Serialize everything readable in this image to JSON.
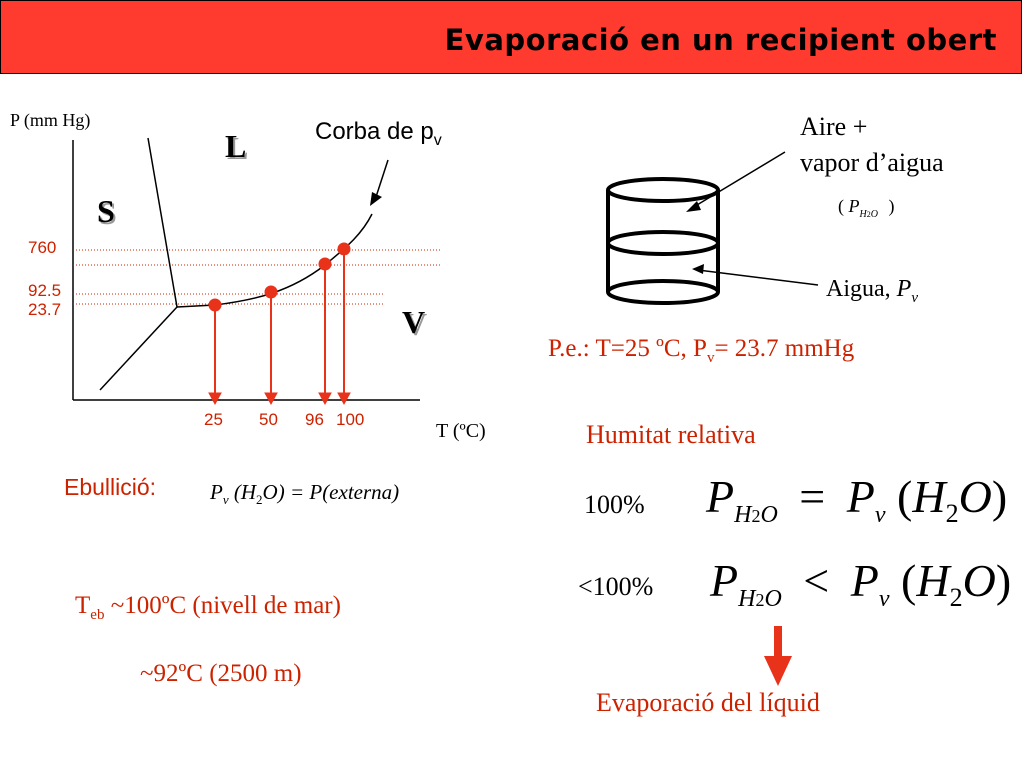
{
  "title": "Evaporació en un recipient obert",
  "colors": {
    "title_bg": "#ff3b2f",
    "accent": "#cc2200",
    "marker": "#e8321a"
  },
  "diagram": {
    "y_axis_label": "P (mm Hg)",
    "x_axis_label": "T (ºC)",
    "curve_label_prefix": "Corba de p",
    "curve_label_sub": "v",
    "phases": {
      "liquid": "L",
      "solid": "S",
      "vapor": "V"
    },
    "pressure_ticks": [
      "760",
      "92.5",
      "23.7"
    ],
    "temperature_ticks": [
      "25",
      "50",
      "96",
      "100"
    ]
  },
  "ebullicio": {
    "label": "Ebullició:",
    "eq_P": "P",
    "eq_v": "v",
    "eq_rest": "(H",
    "eq_2": "2",
    "eq_rest2": "O) = P(externa)"
  },
  "boiling": {
    "T": "T",
    "sub": "eb",
    "line1": "~100ºC (nivell  de mar)",
    "line2": "~92ºC  (2500 m)"
  },
  "container": {
    "air_label_1": "Aire +",
    "air_label_2": "vapor d’aigua",
    "air_formula_open": "(",
    "air_formula_P": "P",
    "air_formula_H": "H",
    "air_formula_2": "2",
    "air_formula_O": "O",
    "air_formula_close": ")",
    "water_label": "Aigua, ",
    "water_P": "P",
    "water_v": "v"
  },
  "example": {
    "prefix": "P.e.: T=25 ºC, P",
    "sub": "v",
    "suffix": "= 23.7 mmHg"
  },
  "humidity": {
    "heading": "Humitat relativa",
    "row1_pct": "100%",
    "row1_op": "=",
    "row2_pct": "<100%",
    "row2_op": "<",
    "P": "P",
    "H": "H",
    "two": "2",
    "O": "O",
    "v": "v",
    "paren_open": "(",
    "paren_close": ")",
    "conclusion": "Evaporació del líquid"
  }
}
